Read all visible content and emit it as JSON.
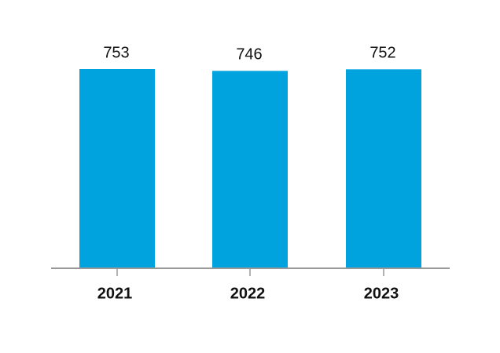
{
  "chart_data": {
    "type": "bar",
    "categories": [
      "2021",
      "2022",
      "2023"
    ],
    "values": [
      753,
      746,
      752
    ],
    "color": "#00a3de"
  }
}
